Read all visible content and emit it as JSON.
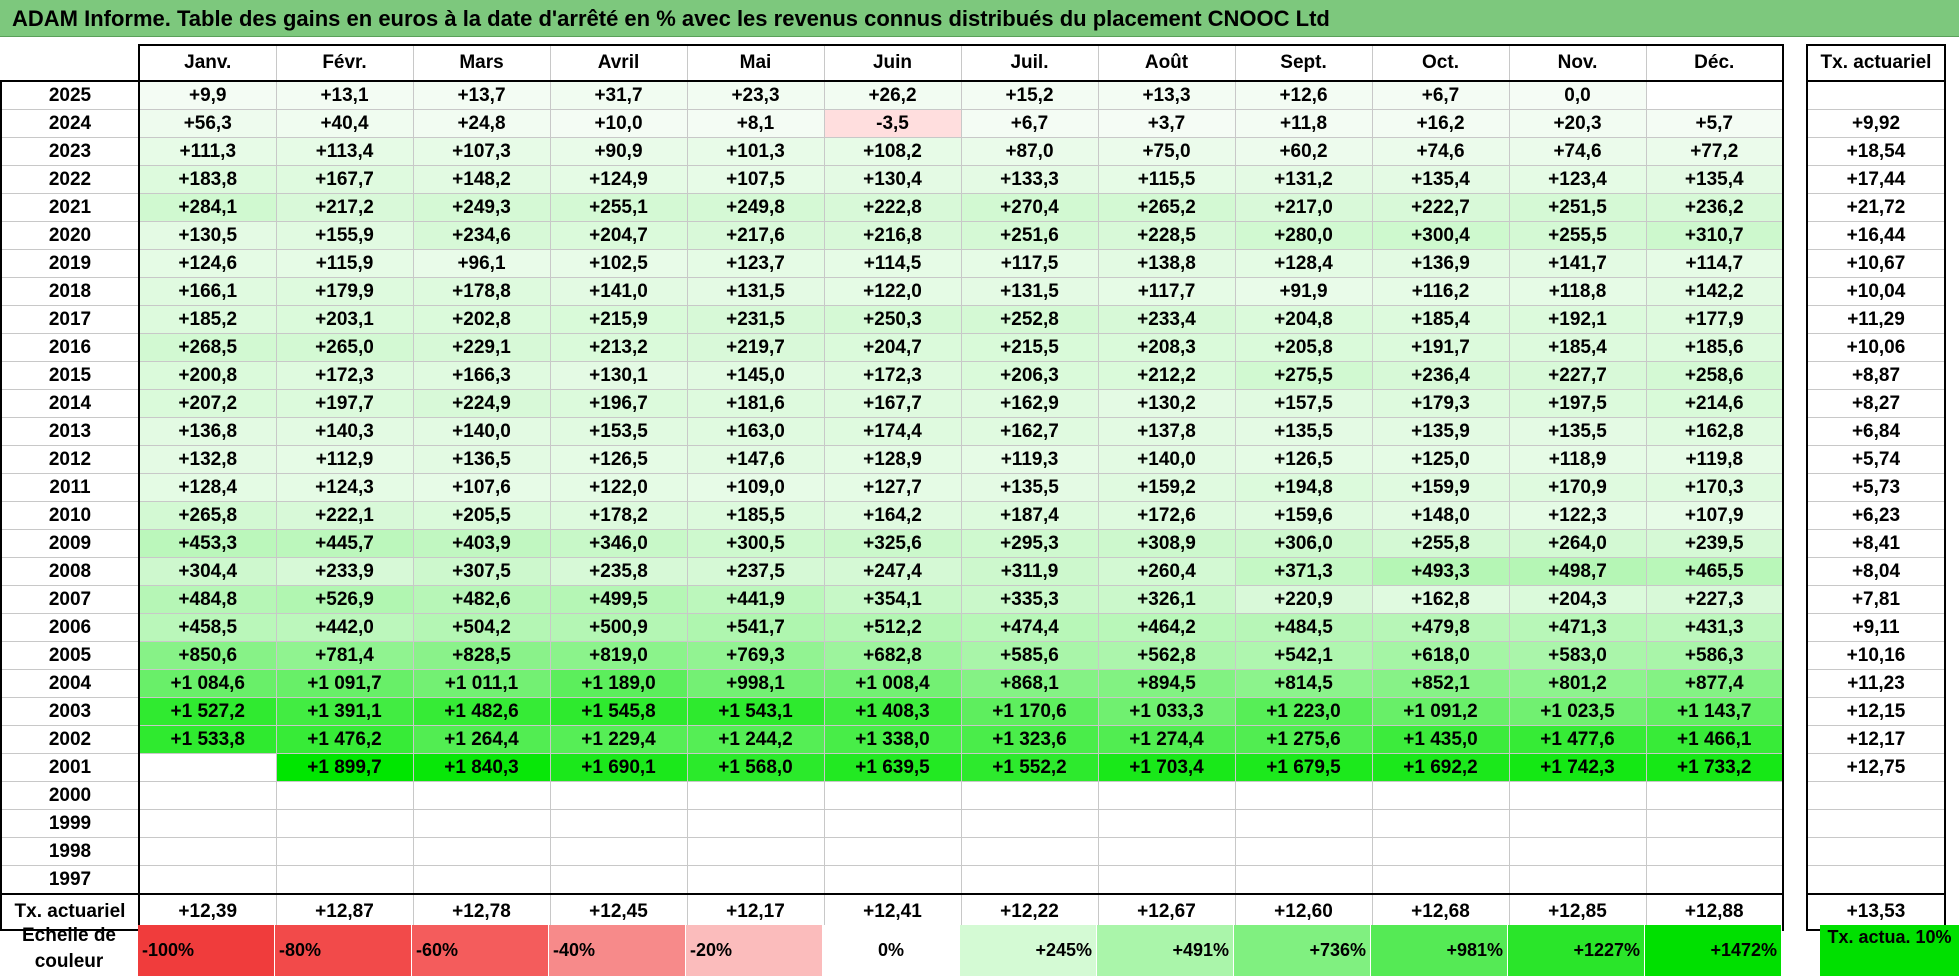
{
  "title": "ADAM Informe. Table des gains en euros à la date d'arrêté en % avec les revenus connus distribués du placement CNOOC Ltd",
  "months": [
    "Janv.",
    "Févr.",
    "Mars",
    "Avril",
    "Mai",
    "Juin",
    "Juil.",
    "Août",
    "Sept.",
    "Oct.",
    "Nov.",
    "Déc."
  ],
  "tx_header": "Tx. actuariel",
  "rows": [
    {
      "year": "2025",
      "cells": [
        "+9,9",
        "+13,1",
        "+13,7",
        "+31,7",
        "+23,3",
        "+26,2",
        "+15,2",
        "+13,3",
        "+12,6",
        "+6,7",
        "0,0",
        ""
      ],
      "tx": ""
    },
    {
      "year": "2024",
      "cells": [
        "+56,3",
        "+40,4",
        "+24,8",
        "+10,0",
        "+8,1",
        "-3,5",
        "+6,7",
        "+3,7",
        "+11,8",
        "+16,2",
        "+20,3",
        "+5,7"
      ],
      "tx": "+9,92"
    },
    {
      "year": "2023",
      "cells": [
        "+111,3",
        "+113,4",
        "+107,3",
        "+90,9",
        "+101,3",
        "+108,2",
        "+87,0",
        "+75,0",
        "+60,2",
        "+74,6",
        "+74,6",
        "+77,2"
      ],
      "tx": "+18,54"
    },
    {
      "year": "2022",
      "cells": [
        "+183,8",
        "+167,7",
        "+148,2",
        "+124,9",
        "+107,5",
        "+130,4",
        "+133,3",
        "+115,5",
        "+131,2",
        "+135,4",
        "+123,4",
        "+135,4"
      ],
      "tx": "+17,44"
    },
    {
      "year": "2021",
      "cells": [
        "+284,1",
        "+217,2",
        "+249,3",
        "+255,1",
        "+249,8",
        "+222,8",
        "+270,4",
        "+265,2",
        "+217,0",
        "+222,7",
        "+251,5",
        "+236,2"
      ],
      "tx": "+21,72"
    },
    {
      "year": "2020",
      "cells": [
        "+130,5",
        "+155,9",
        "+234,6",
        "+204,7",
        "+217,6",
        "+216,8",
        "+251,6",
        "+228,5",
        "+280,0",
        "+300,4",
        "+255,5",
        "+310,7"
      ],
      "tx": "+16,44"
    },
    {
      "year": "2019",
      "cells": [
        "+124,6",
        "+115,9",
        "+96,1",
        "+102,5",
        "+123,7",
        "+114,5",
        "+117,5",
        "+138,8",
        "+128,4",
        "+136,9",
        "+141,7",
        "+114,7"
      ],
      "tx": "+10,67"
    },
    {
      "year": "2018",
      "cells": [
        "+166,1",
        "+179,9",
        "+178,8",
        "+141,0",
        "+131,5",
        "+122,0",
        "+131,5",
        "+117,7",
        "+91,9",
        "+116,2",
        "+118,8",
        "+142,2"
      ],
      "tx": "+10,04"
    },
    {
      "year": "2017",
      "cells": [
        "+185,2",
        "+203,1",
        "+202,8",
        "+215,9",
        "+231,5",
        "+250,3",
        "+252,8",
        "+233,4",
        "+204,8",
        "+185,4",
        "+192,1",
        "+177,9"
      ],
      "tx": "+11,29"
    },
    {
      "year": "2016",
      "cells": [
        "+268,5",
        "+265,0",
        "+229,1",
        "+213,2",
        "+219,7",
        "+204,7",
        "+215,5",
        "+208,3",
        "+205,8",
        "+191,7",
        "+185,4",
        "+185,6"
      ],
      "tx": "+10,06"
    },
    {
      "year": "2015",
      "cells": [
        "+200,8",
        "+172,3",
        "+166,3",
        "+130,1",
        "+145,0",
        "+172,3",
        "+206,3",
        "+212,2",
        "+275,5",
        "+236,4",
        "+227,7",
        "+258,6"
      ],
      "tx": "+8,87"
    },
    {
      "year": "2014",
      "cells": [
        "+207,2",
        "+197,7",
        "+224,9",
        "+196,7",
        "+181,6",
        "+167,7",
        "+162,9",
        "+130,2",
        "+157,5",
        "+179,3",
        "+197,5",
        "+214,6"
      ],
      "tx": "+8,27"
    },
    {
      "year": "2013",
      "cells": [
        "+136,8",
        "+140,3",
        "+140,0",
        "+153,5",
        "+163,0",
        "+174,4",
        "+162,7",
        "+137,8",
        "+135,5",
        "+135,9",
        "+135,5",
        "+162,8"
      ],
      "tx": "+6,84"
    },
    {
      "year": "2012",
      "cells": [
        "+132,8",
        "+112,9",
        "+136,5",
        "+126,5",
        "+147,6",
        "+128,9",
        "+119,3",
        "+140,0",
        "+126,5",
        "+125,0",
        "+118,9",
        "+119,8"
      ],
      "tx": "+5,74"
    },
    {
      "year": "2011",
      "cells": [
        "+128,4",
        "+124,3",
        "+107,6",
        "+122,0",
        "+109,0",
        "+127,7",
        "+135,5",
        "+159,2",
        "+194,8",
        "+159,9",
        "+170,9",
        "+170,3"
      ],
      "tx": "+5,73"
    },
    {
      "year": "2010",
      "cells": [
        "+265,8",
        "+222,1",
        "+205,5",
        "+178,2",
        "+185,5",
        "+164,2",
        "+187,4",
        "+172,6",
        "+159,6",
        "+148,0",
        "+122,3",
        "+107,9"
      ],
      "tx": "+6,23"
    },
    {
      "year": "2009",
      "cells": [
        "+453,3",
        "+445,7",
        "+403,9",
        "+346,0",
        "+300,5",
        "+325,6",
        "+295,3",
        "+308,9",
        "+306,0",
        "+255,8",
        "+264,0",
        "+239,5"
      ],
      "tx": "+8,41"
    },
    {
      "year": "2008",
      "cells": [
        "+304,4",
        "+233,9",
        "+307,5",
        "+235,8",
        "+237,5",
        "+247,4",
        "+311,9",
        "+260,4",
        "+371,3",
        "+493,3",
        "+498,7",
        "+465,5"
      ],
      "tx": "+8,04"
    },
    {
      "year": "2007",
      "cells": [
        "+484,8",
        "+526,9",
        "+482,6",
        "+499,5",
        "+441,9",
        "+354,1",
        "+335,3",
        "+326,1",
        "+220,9",
        "+162,8",
        "+204,3",
        "+227,3"
      ],
      "tx": "+7,81"
    },
    {
      "year": "2006",
      "cells": [
        "+458,5",
        "+442,0",
        "+504,2",
        "+500,9",
        "+541,7",
        "+512,2",
        "+474,4",
        "+464,2",
        "+484,5",
        "+479,8",
        "+471,3",
        "+431,3"
      ],
      "tx": "+9,11"
    },
    {
      "year": "2005",
      "cells": [
        "+850,6",
        "+781,4",
        "+828,5",
        "+819,0",
        "+769,3",
        "+682,8",
        "+585,6",
        "+562,8",
        "+542,1",
        "+618,0",
        "+583,0",
        "+586,3"
      ],
      "tx": "+10,16"
    },
    {
      "year": "2004",
      "cells": [
        "+1 084,6",
        "+1 091,7",
        "+1 011,1",
        "+1 189,0",
        "+998,1",
        "+1 008,4",
        "+868,1",
        "+894,5",
        "+814,5",
        "+852,1",
        "+801,2",
        "+877,4"
      ],
      "tx": "+11,23"
    },
    {
      "year": "2003",
      "cells": [
        "+1 527,2",
        "+1 391,1",
        "+1 482,6",
        "+1 545,8",
        "+1 543,1",
        "+1 408,3",
        "+1 170,6",
        "+1 033,3",
        "+1 223,0",
        "+1 091,2",
        "+1 023,5",
        "+1 143,7"
      ],
      "tx": "+12,15"
    },
    {
      "year": "2002",
      "cells": [
        "+1 533,8",
        "+1 476,2",
        "+1 264,4",
        "+1 229,4",
        "+1 244,2",
        "+1 338,0",
        "+1 323,6",
        "+1 274,4",
        "+1 275,6",
        "+1 435,0",
        "+1 477,6",
        "+1 466,1"
      ],
      "tx": "+12,17"
    },
    {
      "year": "2001",
      "cells": [
        "",
        "+1 899,7",
        "+1 840,3",
        "+1 690,1",
        "+1 568,0",
        "+1 639,5",
        "+1 552,2",
        "+1 703,4",
        "+1 679,5",
        "+1 692,2",
        "+1 742,3",
        "+1 733,2"
      ],
      "tx": "+12,75"
    },
    {
      "year": "2000",
      "cells": [
        "",
        "",
        "",
        "",
        "",
        "",
        "",
        "",
        "",
        "",
        "",
        ""
      ],
      "tx": ""
    },
    {
      "year": "1999",
      "cells": [
        "",
        "",
        "",
        "",
        "",
        "",
        "",
        "",
        "",
        "",
        "",
        ""
      ],
      "tx": ""
    },
    {
      "year": "1998",
      "cells": [
        "",
        "",
        "",
        "",
        "",
        "",
        "",
        "",
        "",
        "",
        "",
        ""
      ],
      "tx": ""
    },
    {
      "year": "1997",
      "cells": [
        "",
        "",
        "",
        "",
        "",
        "",
        "",
        "",
        "",
        "",
        "",
        ""
      ],
      "tx": ""
    }
  ],
  "footer": {
    "label": "Tx. actuariel",
    "cells": [
      "+12,39",
      "+12,87",
      "+12,78",
      "+12,45",
      "+12,17",
      "+12,41",
      "+12,22",
      "+12,67",
      "+12,60",
      "+12,68",
      "+12,85",
      "+12,88"
    ],
    "tx": "+13,53"
  },
  "legend": {
    "label": "Echelle de couleur",
    "items": [
      {
        "text": "-100%",
        "color": "#f03c3c"
      },
      {
        "text": "-80%",
        "color": "#f24a4a"
      },
      {
        "text": "-60%",
        "color": "#f45c5c"
      },
      {
        "text": "-40%",
        "color": "#f78a8a"
      },
      {
        "text": "-20%",
        "color": "#fbbcbc"
      },
      {
        "text": "0%",
        "color": "#ffffff"
      },
      {
        "text": "+245%",
        "color": "#d4fad4"
      },
      {
        "text": "+491%",
        "color": "#aaf5aa"
      },
      {
        "text": "+736%",
        "color": "#80f080"
      },
      {
        "text": "+981%",
        "color": "#55ea55"
      },
      {
        "text": "+1227%",
        "color": "#2ae52a"
      },
      {
        "text": "+1472%",
        "color": "#00e000"
      }
    ],
    "tx_label": "Tx. actua. 10%",
    "tx_color": "#00e000"
  }
}
